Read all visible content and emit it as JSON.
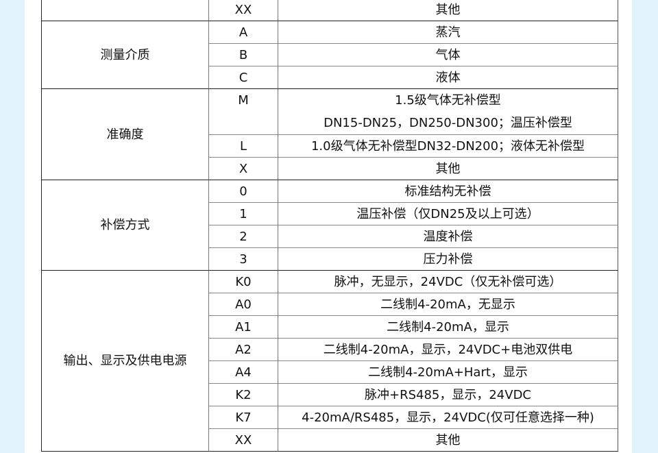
{
  "groups": [
    {
      "label": "",
      "rows": [
        {
          "code": "XX",
          "desc": [
            "其他"
          ]
        }
      ]
    },
    {
      "label": "测量介质",
      "rows": [
        {
          "code": "A",
          "desc": [
            "蒸汽"
          ]
        },
        {
          "code": "B",
          "desc": [
            "气体"
          ]
        },
        {
          "code": "C",
          "desc": [
            "液体"
          ]
        }
      ]
    },
    {
      "label": "准确度",
      "rows": [
        {
          "code": "M",
          "desc": [
            "1.5级气体无补偿型",
            "DN15-DN25，DN250-DN300；温压补偿型"
          ]
        },
        {
          "code": "L",
          "desc": [
            "1.0级气体无补偿型DN32-DN200；液体无补偿型"
          ]
        },
        {
          "code": "X",
          "desc": [
            "其他"
          ]
        }
      ]
    },
    {
      "label": "补偿方式",
      "rows": [
        {
          "code": "0",
          "desc": [
            "标准结构无补偿"
          ]
        },
        {
          "code": "1",
          "desc": [
            "温压补偿（仅DN25及以上可选）"
          ]
        },
        {
          "code": "2",
          "desc": [
            "温度补偿"
          ]
        },
        {
          "code": "3",
          "desc": [
            "压力补偿"
          ]
        }
      ]
    },
    {
      "label": "输出、显示及供电电源",
      "rows": [
        {
          "code": "K0",
          "desc": [
            "脉冲，无显示，24VDC（仅无补偿可选）"
          ]
        },
        {
          "code": "A0",
          "desc": [
            "二线制4-20mA，无显示"
          ]
        },
        {
          "code": "A1",
          "desc": [
            "二线制4-20mA，显示"
          ]
        },
        {
          "code": "A2",
          "desc": [
            "二线制4-20mA，显示，24VDC+电池双供电"
          ]
        },
        {
          "code": "A4",
          "desc": [
            "二线制4-20mA+Hart，显示"
          ]
        },
        {
          "code": "K2",
          "desc": [
            "脉冲+RS485，显示，24VDC"
          ]
        },
        {
          "code": "K7",
          "desc": [
            "4-20mA/RS485，显示，24VDC(仅可任意选择一种)"
          ]
        },
        {
          "code": "XX",
          "desc": [
            "其他"
          ]
        }
      ]
    }
  ]
}
